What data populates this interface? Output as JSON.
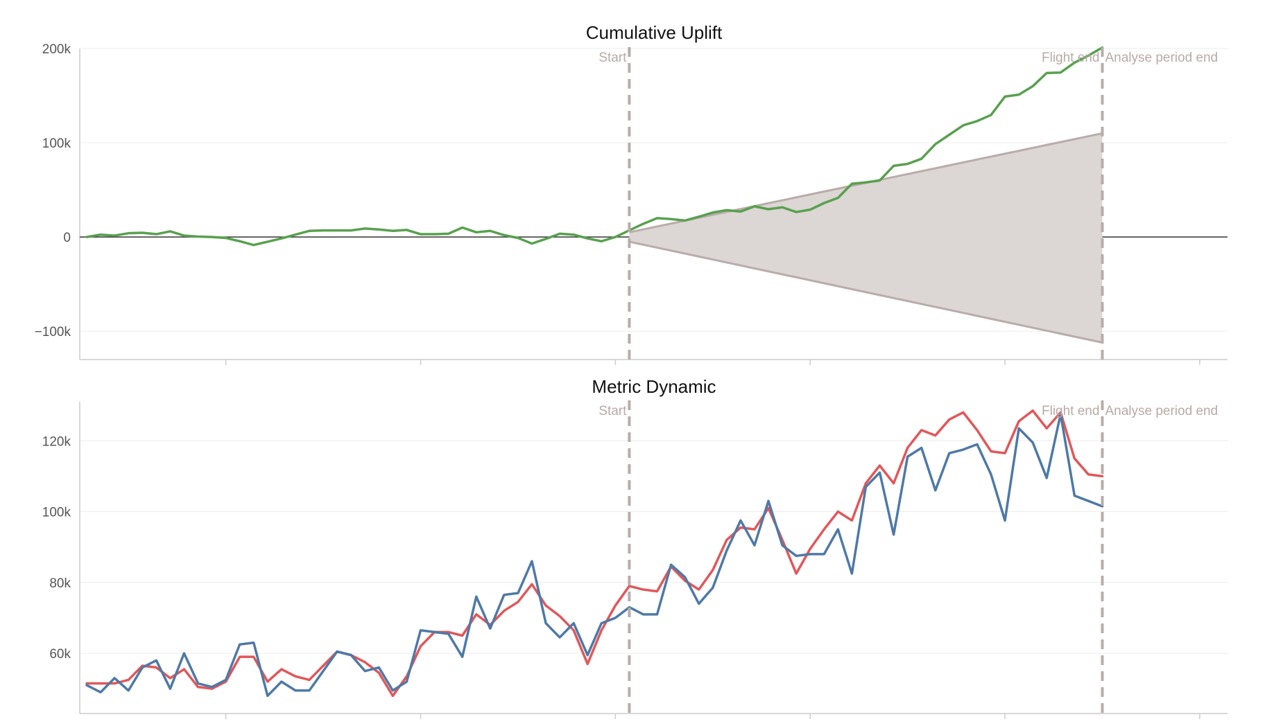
{
  "colors": {
    "uplift": "#58a14e",
    "band_fill": "#dcd6d4",
    "band_line": "#b9aca9",
    "event_line": "#b9aca9",
    "zero_line": "#333333",
    "red_series": "#e15759",
    "blue_series": "#4e79a7",
    "grid": "#ececec",
    "axis": "#cccccc"
  },
  "chart_data": [
    {
      "type": "line",
      "title": "Cumulative Uplift",
      "xlabel": "",
      "ylabel": "",
      "ylim": [
        -130000,
        200000
      ],
      "yticks": [
        {
          "value": 200000,
          "label": "200k"
        },
        {
          "value": 100000,
          "label": "100k"
        },
        {
          "value": 0,
          "label": "0"
        },
        {
          "value": -100000,
          "label": "−100k"
        }
      ],
      "x_range": [
        -0.5,
        82
      ],
      "x_ticks": [
        10,
        24,
        38,
        52,
        66,
        80
      ],
      "x": [
        0,
        1,
        2,
        3,
        4,
        5,
        6,
        7,
        8,
        9,
        10,
        11,
        12,
        13,
        14,
        15,
        16,
        17,
        18,
        19,
        20,
        21,
        22,
        23,
        24,
        25,
        26,
        27,
        28,
        29,
        30,
        31,
        32,
        33,
        34,
        35,
        36,
        37,
        38,
        39,
        40,
        41,
        42,
        43,
        44,
        45,
        46,
        47,
        48,
        49,
        50,
        51,
        52,
        53,
        54,
        55,
        56,
        57,
        58,
        59,
        60,
        61,
        62,
        63,
        64,
        65,
        66,
        67,
        68,
        69,
        70,
        71,
        72,
        73
      ],
      "events": [
        {
          "label": "Start",
          "x": 39,
          "label_side": "left"
        },
        {
          "label": "Flight end",
          "x": 73,
          "label_side": "left"
        },
        {
          "label": "Analyse period end",
          "x": 73,
          "label_side": "right"
        }
      ],
      "series": [
        {
          "values": [
            0,
            2500,
            1500,
            4000,
            4500,
            3000,
            6000,
            1500,
            500,
            0,
            -1000,
            -4500,
            -8500,
            -5000,
            -1500,
            2500,
            6500,
            7000,
            7000,
            7000,
            9000,
            8000,
            6500,
            7500,
            3000,
            3000,
            3500,
            10000,
            5000,
            6500,
            2000,
            -1000,
            -7000,
            -2000,
            3500,
            2500,
            -1500,
            -4500,
            0,
            7000,
            14000,
            20000,
            19000,
            17500,
            21500,
            26000,
            28500,
            27000,
            32500,
            29500,
            31500,
            26500,
            29000,
            36000,
            41500,
            56500,
            58000,
            60000,
            75500,
            77500,
            83000,
            98500,
            108500,
            118500,
            123000,
            129500,
            149000,
            151000,
            160000,
            174000,
            174500,
            185000,
            192500,
            201000
          ]
        }
      ],
      "band": {
        "x": [
          39,
          73
        ],
        "upper": [
          5000,
          110000
        ],
        "lower": [
          -5000,
          -112000
        ]
      }
    },
    {
      "type": "line",
      "title": "Metric Dynamic",
      "xlabel": "",
      "ylabel": "",
      "ylim": [
        43000,
        131000
      ],
      "yticks": [
        {
          "value": 120000,
          "label": "120k"
        },
        {
          "value": 100000,
          "label": "100k"
        },
        {
          "value": 80000,
          "label": "80k"
        },
        {
          "value": 60000,
          "label": "60k"
        }
      ],
      "x_range": [
        -0.5,
        82
      ],
      "x_ticks": [
        10,
        24,
        38,
        52,
        66,
        80
      ],
      "x": [
        0,
        1,
        2,
        3,
        4,
        5,
        6,
        7,
        8,
        9,
        10,
        11,
        12,
        13,
        14,
        15,
        16,
        17,
        18,
        19,
        20,
        21,
        22,
        23,
        24,
        25,
        26,
        27,
        28,
        29,
        30,
        31,
        32,
        33,
        34,
        35,
        36,
        37,
        38,
        39,
        40,
        41,
        42,
        43,
        44,
        45,
        46,
        47,
        48,
        49,
        50,
        51,
        52,
        53,
        54,
        55,
        56,
        57,
        58,
        59,
        60,
        61,
        62,
        63,
        64,
        65,
        66,
        67,
        68,
        69,
        70,
        71,
        72,
        73
      ],
      "events": [
        {
          "label": "Start",
          "x": 39,
          "label_side": "left"
        },
        {
          "label": "Flight end",
          "x": 73,
          "label_side": "left"
        },
        {
          "label": "Analyse period end",
          "x": 73,
          "label_side": "right"
        }
      ],
      "series": [
        {
          "color_key": "red_series",
          "values": [
            51500,
            51500,
            51500,
            52500,
            56500,
            56000,
            53000,
            55500,
            50500,
            50000,
            52000,
            59000,
            59000,
            52000,
            55500,
            53500,
            52500,
            56500,
            60500,
            59500,
            57500,
            54500,
            48000,
            53500,
            62000,
            66000,
            66000,
            65000,
            71000,
            68000,
            72000,
            74500,
            79500,
            73500,
            70500,
            66500,
            57000,
            66500,
            73500,
            79000,
            78000,
            77500,
            84500,
            80500,
            78000,
            83500,
            92000,
            95500,
            95000,
            101000,
            92000,
            82500,
            89500,
            95000,
            100000,
            97500,
            108000,
            113000,
            108000,
            118000,
            123000,
            121500,
            126000,
            128000,
            123000,
            117000,
            116500,
            125500,
            128500,
            123500,
            128000,
            115000,
            110500,
            110000
          ]
        },
        {
          "color_key": "blue_series",
          "values": [
            51000,
            49000,
            53000,
            49500,
            56000,
            58000,
            50000,
            60000,
            51500,
            50500,
            52500,
            62500,
            63000,
            48000,
            52000,
            49500,
            49500,
            55000,
            60500,
            59500,
            55000,
            56000,
            49500,
            52000,
            66500,
            66000,
            65500,
            59000,
            76000,
            67000,
            76500,
            77000,
            86000,
            68500,
            64500,
            68500,
            59500,
            68500,
            70000,
            73000,
            71000,
            71000,
            85000,
            81500,
            74000,
            78500,
            89000,
            97500,
            90500,
            103000,
            90500,
            87500,
            88000,
            88000,
            95000,
            82500,
            107000,
            111000,
            93500,
            115500,
            118000,
            106000,
            116500,
            117500,
            119000,
            110500,
            97500,
            123500,
            119500,
            109500,
            127500,
            104500,
            103000,
            101500
          ]
        }
      ]
    }
  ]
}
